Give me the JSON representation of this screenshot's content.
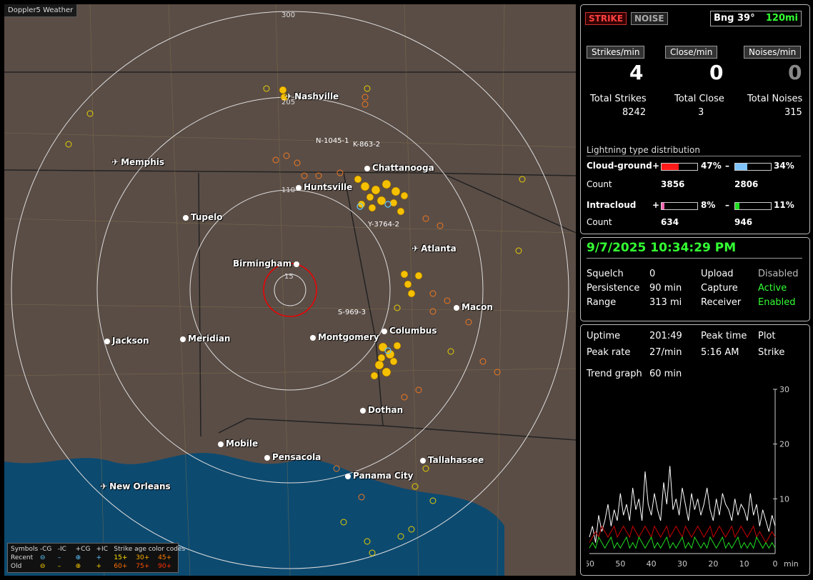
{
  "app": {
    "title": "Doppler5 Weather"
  },
  "map": {
    "ring_labels": [
      "300",
      "205",
      "110",
      "15"
    ],
    "cities": [
      {
        "name": "Nashville",
        "icon": "airport-icon"
      },
      {
        "name": "Memphis",
        "icon": "airport-icon"
      },
      {
        "name": "Chattanooga",
        "icon": "city-dot"
      },
      {
        "name": "Huntsville",
        "icon": "city-dot"
      },
      {
        "name": "Tupelo",
        "icon": "city-dot"
      },
      {
        "name": "Atlanta",
        "icon": "airport-icon"
      },
      {
        "name": "Birmingham",
        "icon": "city-dot"
      },
      {
        "name": "Macon",
        "icon": "city-dot"
      },
      {
        "name": "Columbus",
        "icon": "city-dot"
      },
      {
        "name": "Jackson",
        "icon": "city-dot"
      },
      {
        "name": "Meridian",
        "icon": "city-dot"
      },
      {
        "name": "Montgomery",
        "icon": "city-dot"
      },
      {
        "name": "Dothan",
        "icon": "city-dot"
      },
      {
        "name": "Mobile",
        "icon": "city-dot"
      },
      {
        "name": "Pensacola",
        "icon": "city-dot"
      },
      {
        "name": "Tallahassee",
        "icon": "city-dot"
      },
      {
        "name": "Panama City",
        "icon": "city-dot"
      },
      {
        "name": "New Orleans",
        "icon": "airport-icon"
      }
    ],
    "strike_tags": [
      "N-1045-1",
      "K-863-2",
      "Y-3764-2",
      "S-969-3"
    ]
  },
  "legend": {
    "title": "Symbols",
    "cols": [
      "-CG",
      "-IC",
      "+CG",
      "+IC"
    ],
    "age_title": "Strike age color codes",
    "recent_label": "Recent",
    "old_label": "Old",
    "recent_ages": [
      "15+",
      "30+",
      "45+"
    ],
    "old_ages": [
      "60+",
      "75+",
      "90+"
    ]
  },
  "status": {
    "strike_button": "STRIKE",
    "noise_button": "NOISE",
    "bearing": "Bng 39°",
    "range": "120mi"
  },
  "rates": {
    "strikes_label": "Strikes/min",
    "strikes_value": "4",
    "close_label": "Close/min",
    "close_value": "0",
    "noises_label": "Noises/min",
    "noises_value": "0"
  },
  "totals": {
    "strikes_label": "Total Strikes",
    "strikes_value": "8242",
    "close_label": "Total Close",
    "close_value": "3",
    "noises_label": "Total Noises",
    "noises_value": "315"
  },
  "distribution": {
    "title": "Lightning type distribution",
    "cg_label": "Cloud-ground",
    "ic_label": "Intracloud",
    "count_label": "Count",
    "plus": "+",
    "minus": "–",
    "cg_pos_pct": "47%",
    "cg_pos_frac": 0.47,
    "cg_pos_count": "3856",
    "cg_neg_pct": "34%",
    "cg_neg_frac": 0.34,
    "cg_neg_count": "2806",
    "ic_pos_pct": "8%",
    "ic_pos_frac": 0.08,
    "ic_pos_count": "634",
    "ic_neg_pct": "11%",
    "ic_neg_frac": 0.11,
    "ic_neg_count": "946",
    "colors": {
      "cg_pos": "#ff1a1a",
      "cg_neg": "#7fc4ff",
      "ic_pos": "#ff66b3",
      "ic_neg": "#22dd22"
    }
  },
  "settings": {
    "datetime": "9/7/2025 10:34:29 PM",
    "squelch_label": "Squelch",
    "squelch_value": "0",
    "persistence_label": "Persistence",
    "persistence_value": "90 min",
    "range_label": "Range",
    "range_value": "313 mi",
    "upload_label": "Upload",
    "upload_value": "Disabled",
    "capture_label": "Capture",
    "capture_value": "Active",
    "receiver_label": "Receiver",
    "receiver_value": "Enabled"
  },
  "uptime": {
    "uptime_label": "Uptime",
    "uptime_value": "201:49",
    "peak_time_label": "Peak time",
    "peak_time_value": "5:16 AM",
    "plot_label": "Plot",
    "plot_value": "Strike",
    "peak_rate_label": "Peak rate",
    "peak_rate_value": "27/min",
    "trend_label": "Trend graph",
    "trend_value": "60 min"
  },
  "chart_data": {
    "type": "line",
    "x_ticks": [
      "60",
      "50",
      "40",
      "30",
      "20",
      "10",
      "0"
    ],
    "x_unit": "min",
    "y_ticks": [
      "30",
      "20",
      "10"
    ],
    "ylim": [
      0,
      30
    ],
    "xlim": [
      60,
      0
    ],
    "series": [
      {
        "color": "#ffffff",
        "values": [
          3,
          5,
          2,
          7,
          4,
          6,
          9,
          5,
          8,
          6,
          11,
          7,
          9,
          6,
          12,
          8,
          10,
          6,
          15,
          9,
          7,
          11,
          8,
          6,
          13,
          9,
          16,
          8,
          10,
          7,
          12,
          9,
          6,
          11,
          8,
          10,
          7,
          9,
          12,
          8,
          6,
          10,
          7,
          11,
          9,
          8,
          6,
          10,
          7,
          9,
          8,
          6,
          11,
          7,
          9,
          5,
          8,
          6,
          4,
          7,
          5
        ]
      },
      {
        "color": "#cc0000",
        "values": [
          2,
          3,
          4,
          3,
          5,
          4,
          3,
          4,
          5,
          3,
          4,
          5,
          4,
          3,
          5,
          4,
          3,
          4,
          5,
          4,
          3,
          5,
          4,
          3,
          4,
          5,
          3,
          4,
          5,
          4,
          3,
          5,
          4,
          3,
          4,
          5,
          4,
          3,
          4,
          5,
          3,
          4,
          5,
          4,
          3,
          4,
          5,
          3,
          4,
          5,
          4,
          3,
          4,
          5,
          3,
          4,
          3,
          2,
          3,
          4,
          3
        ]
      },
      {
        "color": "#22dd22",
        "values": [
          1,
          2,
          1,
          3,
          2,
          1,
          2,
          3,
          1,
          2,
          1,
          2,
          3,
          1,
          2,
          1,
          3,
          2,
          1,
          2,
          3,
          1,
          2,
          1,
          2,
          3,
          1,
          2,
          1,
          2,
          3,
          1,
          2,
          1,
          3,
          2,
          1,
          2,
          1,
          3,
          2,
          1,
          2,
          3,
          1,
          2,
          1,
          2,
          3,
          1,
          2,
          1,
          2,
          1,
          3,
          2,
          1,
          2,
          1,
          2,
          1
        ]
      }
    ]
  }
}
